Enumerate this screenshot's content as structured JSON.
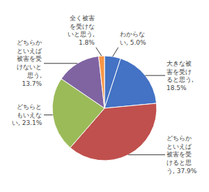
{
  "chart_data": {
    "type": "pie",
    "values": [
      5.0,
      18.5,
      37.9,
      23.1,
      13.7,
      1.8
    ],
    "value_labels": [
      "わからな\nい, 5.0%",
      "大きな被\n害を受け\nると思う,\n18.5%",
      "どちらか\nといえば\n被害を受\nけると思\nう, 37.9%",
      "どちらと\nもいえな\nい, 23.1%",
      "どちらか\nといえば\n被害を受\nけないと\n思う,\n13.7%",
      "全く被害\nを受けな\nいと思う,\n1.8%"
    ],
    "colors": [
      "#4472C4",
      "#4472C4",
      "#C0504D",
      "#9BBB59",
      "#8064A2",
      "#F79646"
    ],
    "data_labels": true
  }
}
